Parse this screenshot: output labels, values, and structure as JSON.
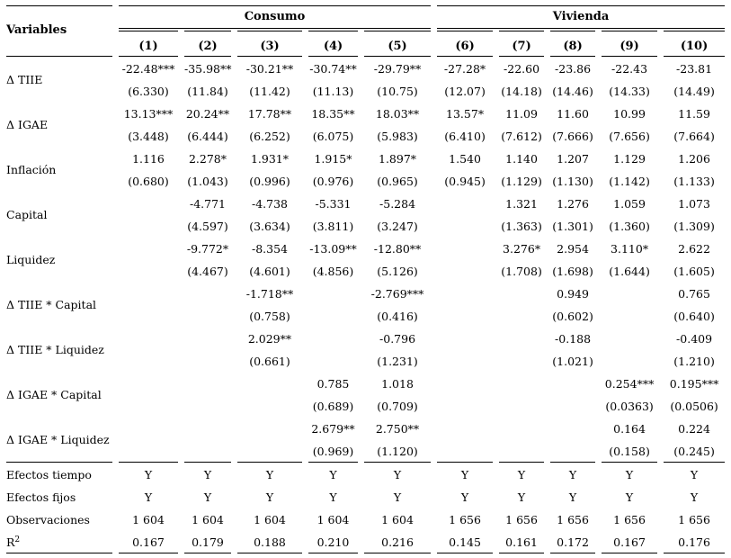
{
  "table": {
    "title_col": "Variables",
    "groups": [
      {
        "label": "Consumo",
        "cols": 5
      },
      {
        "label": "Vivienda",
        "cols": 5
      }
    ],
    "col_headers": [
      "(1)",
      "(2)",
      "(3)",
      "(4)",
      "(5)",
      "(6)",
      "(7)",
      "(8)",
      "(9)",
      "(10)"
    ],
    "variables": [
      {
        "name": "Δ TIIE",
        "coef": [
          "-22.48***",
          "-35.98**",
          "-30.21**",
          "-30.74**",
          "-29.79**",
          "-27.28*",
          "-22.60",
          "-23.86",
          "-22.43",
          "-23.81"
        ],
        "se": [
          "(6.330)",
          "(11.84)",
          "(11.42)",
          "(11.13)",
          "(10.75)",
          "(12.07)",
          "(14.18)",
          "(14.46)",
          "(14.33)",
          "(14.49)"
        ]
      },
      {
        "name": "Δ IGAE",
        "coef": [
          "13.13***",
          "20.24**",
          "17.78**",
          "18.35**",
          "18.03**",
          "13.57*",
          "11.09",
          "11.60",
          "10.99",
          "11.59"
        ],
        "se": [
          "(3.448)",
          "(6.444)",
          "(6.252)",
          "(6.075)",
          "(5.983)",
          "(6.410)",
          "(7.612)",
          "(7.666)",
          "(7.656)",
          "(7.664)"
        ]
      },
      {
        "name": "Inflación",
        "coef": [
          "1.116",
          "2.278*",
          "1.931*",
          "1.915*",
          "1.897*",
          "1.540",
          "1.140",
          "1.207",
          "1.129",
          "1.206"
        ],
        "se": [
          "(0.680)",
          "(1.043)",
          "(0.996)",
          "(0.976)",
          "(0.965)",
          "(0.945)",
          "(1.129)",
          "(1.130)",
          "(1.142)",
          "(1.133)"
        ]
      },
      {
        "name": "Capital",
        "coef": [
          "",
          "-4.771",
          "-4.738",
          "-5.331",
          "-5.284",
          "",
          "1.321",
          "1.276",
          "1.059",
          "1.073"
        ],
        "se": [
          "",
          "(4.597)",
          "(3.634)",
          "(3.811)",
          "(3.247)",
          "",
          "(1.363)",
          "(1.301)",
          "(1.360)",
          "(1.309)"
        ]
      },
      {
        "name": "Liquidez",
        "coef": [
          "",
          "-9.772*",
          "-8.354",
          "-13.09**",
          "-12.80**",
          "",
          "3.276*",
          "2.954",
          "3.110*",
          "2.622"
        ],
        "se": [
          "",
          "(4.467)",
          "(4.601)",
          "(4.856)",
          "(5.126)",
          "",
          "(1.708)",
          "(1.698)",
          "(1.644)",
          "(1.605)"
        ]
      },
      {
        "name": "Δ TIIE * Capital",
        "coef": [
          "",
          "",
          "-1.718**",
          "",
          "-2.769***",
          "",
          "",
          "0.949",
          "",
          "0.765"
        ],
        "se": [
          "",
          "",
          "(0.758)",
          "",
          "(0.416)",
          "",
          "",
          "(0.602)",
          "",
          "(0.640)"
        ]
      },
      {
        "name": "Δ TIIE * Liquidez",
        "coef": [
          "",
          "",
          "2.029**",
          "",
          "-0.796",
          "",
          "",
          "-0.188",
          "",
          "-0.409"
        ],
        "se": [
          "",
          "",
          "(0.661)",
          "",
          "(1.231)",
          "",
          "",
          "(1.021)",
          "",
          "(1.210)"
        ]
      },
      {
        "name": "Δ IGAE * Capital",
        "coef": [
          "",
          "",
          "",
          "0.785",
          "1.018",
          "",
          "",
          "",
          "0.254***",
          "0.195***"
        ],
        "se": [
          "",
          "",
          "",
          "(0.689)",
          "(0.709)",
          "",
          "",
          "",
          "(0.0363)",
          "(0.0506)"
        ]
      },
      {
        "name": "Δ IGAE * Liquidez",
        "coef": [
          "",
          "",
          "",
          "2.679**",
          "2.750**",
          "",
          "",
          "",
          "0.164",
          "0.224"
        ],
        "se": [
          "",
          "",
          "",
          "(0.969)",
          "(1.120)",
          "",
          "",
          "",
          "(0.158)",
          "(0.245)"
        ]
      }
    ],
    "summary": [
      {
        "name": "Efectos tiempo",
        "values": [
          "Y",
          "Y",
          "Y",
          "Y",
          "Y",
          "Y",
          "Y",
          "Y",
          "Y",
          "Y"
        ]
      },
      {
        "name": "Efectos fijos",
        "values": [
          "Y",
          "Y",
          "Y",
          "Y",
          "Y",
          "Y",
          "Y",
          "Y",
          "Y",
          "Y"
        ]
      },
      {
        "name": "Observaciones",
        "values": [
          "1 604",
          "1 604",
          "1 604",
          "1 604",
          "1 604",
          "1 656",
          "1 656",
          "1 656",
          "1 656",
          "1 656"
        ]
      },
      {
        "name": "R",
        "sup": "2",
        "values": [
          "0.167",
          "0.179",
          "0.188",
          "0.210",
          "0.216",
          "0.145",
          "0.161",
          "0.172",
          "0.167",
          "0.176"
        ]
      }
    ]
  }
}
